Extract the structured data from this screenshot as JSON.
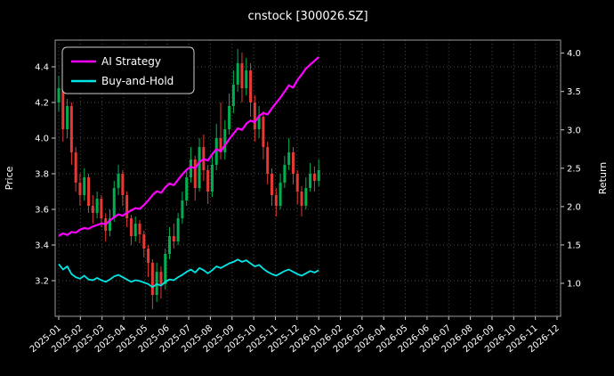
{
  "chart_data": {
    "type": "candlestick+line",
    "title": "cnstock [300026.SZ]",
    "ylabel_left": "Price",
    "ylabel_right": "Return",
    "grid": true,
    "legend_position": "upper-left",
    "x_tick_labels": [
      "2025-01",
      "2025-02",
      "2025-03",
      "2025-04",
      "2025-05",
      "2025-06",
      "2025-07",
      "2025-08",
      "2025-09",
      "2025-10",
      "2025-11",
      "2025-12",
      "2026-01",
      "2026-02",
      "2026-03",
      "2026-04",
      "2026-05",
      "2026-06",
      "2026-07",
      "2026-08",
      "2026-09",
      "2026-10",
      "2026-11",
      "2026-12"
    ],
    "price_ticks": [
      3.2,
      3.4,
      3.6,
      3.8,
      4.0,
      4.2,
      4.4
    ],
    "return_ticks": [
      1.0,
      1.5,
      2.0,
      2.5,
      3.0,
      3.5,
      4.0
    ],
    "price_axis_range": [
      3.0,
      4.55
    ],
    "return_axis_range": [
      0.57,
      4.17
    ],
    "data_month_span": 12,
    "colors": {
      "background": "#000000",
      "text": "#ffffff",
      "grid": "#4a4a4a",
      "spine": "#9a9a9a",
      "up": "#00b050",
      "down": "#e53935"
    },
    "candles_ohlc": [
      [
        4.2,
        4.35,
        4.15,
        4.28
      ],
      [
        4.28,
        4.3,
        3.98,
        4.05
      ],
      [
        4.05,
        4.22,
        4.0,
        4.18
      ],
      [
        4.18,
        4.2,
        3.85,
        3.92
      ],
      [
        3.92,
        3.95,
        3.7,
        3.75
      ],
      [
        3.75,
        3.8,
        3.62,
        3.68
      ],
      [
        3.68,
        3.83,
        3.65,
        3.78
      ],
      [
        3.78,
        3.8,
        3.58,
        3.62
      ],
      [
        3.62,
        3.68,
        3.52,
        3.58
      ],
      [
        3.58,
        3.7,
        3.55,
        3.66
      ],
      [
        3.66,
        3.68,
        3.5,
        3.55
      ],
      [
        3.55,
        3.58,
        3.42,
        3.48
      ],
      [
        3.48,
        3.6,
        3.45,
        3.55
      ],
      [
        3.55,
        3.76,
        3.53,
        3.72
      ],
      [
        3.72,
        3.85,
        3.68,
        3.8
      ],
      [
        3.8,
        3.82,
        3.62,
        3.68
      ],
      [
        3.68,
        3.7,
        3.5,
        3.55
      ],
      [
        3.55,
        3.57,
        3.4,
        3.45
      ],
      [
        3.45,
        3.56,
        3.42,
        3.52
      ],
      [
        3.52,
        3.54,
        3.41,
        3.46
      ],
      [
        3.46,
        3.48,
        3.33,
        3.38
      ],
      [
        3.38,
        3.4,
        3.22,
        3.3
      ],
      [
        3.3,
        3.32,
        3.04,
        3.12
      ],
      [
        3.12,
        3.3,
        3.08,
        3.25
      ],
      [
        3.25,
        3.28,
        3.1,
        3.18
      ],
      [
        3.18,
        3.38,
        3.15,
        3.35
      ],
      [
        3.35,
        3.5,
        3.32,
        3.45
      ],
      [
        3.45,
        3.52,
        3.38,
        3.42
      ],
      [
        3.42,
        3.58,
        3.4,
        3.55
      ],
      [
        3.55,
        3.7,
        3.52,
        3.65
      ],
      [
        3.65,
        3.82,
        3.62,
        3.78
      ],
      [
        3.78,
        3.95,
        3.75,
        3.88
      ],
      [
        3.88,
        3.9,
        3.65,
        3.72
      ],
      [
        3.72,
        4.0,
        3.7,
        3.95
      ],
      [
        3.95,
        4.02,
        3.76,
        3.82
      ],
      [
        3.82,
        3.85,
        3.63,
        3.7
      ],
      [
        3.7,
        3.9,
        3.67,
        3.85
      ],
      [
        3.85,
        4.08,
        3.82,
        4.0
      ],
      [
        4.0,
        4.2,
        3.88,
        3.92
      ],
      [
        3.92,
        4.1,
        3.88,
        4.05
      ],
      [
        4.05,
        4.25,
        4.02,
        4.18
      ],
      [
        4.18,
        4.38,
        4.14,
        4.3
      ],
      [
        4.3,
        4.5,
        4.26,
        4.42
      ],
      [
        4.42,
        4.48,
        4.2,
        4.28
      ],
      [
        4.28,
        4.45,
        4.24,
        4.38
      ],
      [
        4.38,
        4.42,
        4.12,
        4.2
      ],
      [
        4.2,
        4.24,
        3.98,
        4.05
      ],
      [
        4.05,
        4.18,
        4.0,
        4.12
      ],
      [
        4.12,
        4.15,
        3.88,
        3.95
      ],
      [
        3.95,
        3.98,
        3.74,
        3.8
      ],
      [
        3.8,
        3.83,
        3.62,
        3.68
      ],
      [
        3.68,
        3.72,
        3.56,
        3.62
      ],
      [
        3.62,
        3.8,
        3.6,
        3.75
      ],
      [
        3.75,
        3.9,
        3.72,
        3.85
      ],
      [
        3.85,
        4.0,
        3.82,
        3.92
      ],
      [
        3.92,
        3.95,
        3.74,
        3.8
      ],
      [
        3.8,
        3.82,
        3.63,
        3.7
      ],
      [
        3.7,
        3.73,
        3.56,
        3.62
      ],
      [
        3.62,
        3.78,
        3.6,
        3.72
      ],
      [
        3.72,
        3.86,
        3.7,
        3.8
      ],
      [
        3.8,
        3.84,
        3.7,
        3.76
      ],
      [
        3.76,
        3.88,
        3.73,
        3.82
      ]
    ],
    "series": [
      {
        "name": "AI Strategy",
        "color": "#ff00ff",
        "axis": "return",
        "values": [
          1.62,
          1.65,
          1.63,
          1.67,
          1.66,
          1.7,
          1.72,
          1.71,
          1.74,
          1.76,
          1.78,
          1.77,
          1.82,
          1.86,
          1.9,
          1.88,
          1.92,
          1.95,
          1.98,
          1.97,
          2.02,
          2.08,
          2.15,
          2.2,
          2.18,
          2.25,
          2.3,
          2.28,
          2.35,
          2.42,
          2.48,
          2.52,
          2.5,
          2.58,
          2.62,
          2.6,
          2.68,
          2.75,
          2.72,
          2.8,
          2.88,
          2.95,
          3.02,
          3.0,
          3.08,
          3.12,
          3.1,
          3.18,
          3.22,
          3.2,
          3.28,
          3.35,
          3.42,
          3.5,
          3.58,
          3.55,
          3.65,
          3.72,
          3.8,
          3.85,
          3.9,
          3.95
        ]
      },
      {
        "name": "Buy-and-Hold",
        "color": "#00e5e5",
        "axis": "return",
        "values": [
          1.25,
          1.18,
          1.22,
          1.12,
          1.08,
          1.06,
          1.1,
          1.05,
          1.04,
          1.07,
          1.04,
          1.02,
          1.05,
          1.09,
          1.11,
          1.08,
          1.05,
          1.02,
          1.04,
          1.03,
          1.01,
          0.99,
          0.95,
          0.99,
          0.97,
          1.02,
          1.05,
          1.04,
          1.08,
          1.11,
          1.15,
          1.18,
          1.14,
          1.2,
          1.17,
          1.13,
          1.17,
          1.22,
          1.2,
          1.23,
          1.26,
          1.28,
          1.31,
          1.28,
          1.3,
          1.26,
          1.22,
          1.24,
          1.19,
          1.15,
          1.12,
          1.1,
          1.13,
          1.16,
          1.18,
          1.15,
          1.12,
          1.1,
          1.13,
          1.16,
          1.14,
          1.17
        ]
      }
    ]
  }
}
